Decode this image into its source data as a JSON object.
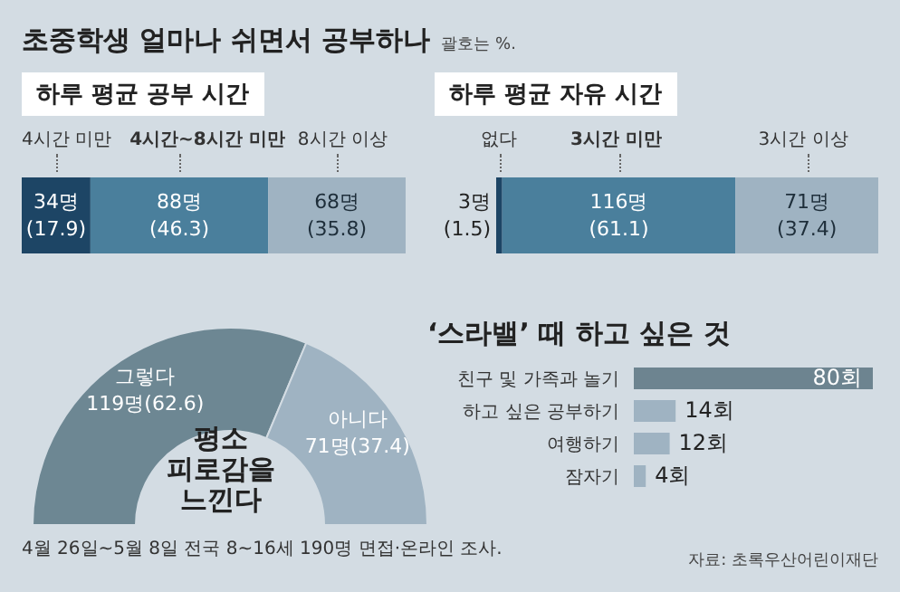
{
  "chart_data": [
    {
      "type": "bar",
      "orientation": "horizontal",
      "stacked": true,
      "title": "초중학생 얼마나 쉬면서 공부하나",
      "annotations": [
        "괄호는 %."
      ],
      "subtitle": "하루 평균 공부 시간",
      "categories": [
        null
      ],
      "series": [
        {
          "name": "4시간 미만",
          "color": "#1d4565",
          "values": [
            34
          ],
          "value_labels": [
            "34명 (17.9)"
          ]
        },
        {
          "name": "4시간~8시간 미만",
          "color": "#4a7f9c",
          "values": [
            88
          ],
          "value_labels": [
            "88명 (46.3)"
          ]
        },
        {
          "name": "8시간 이상",
          "color": "#9fb3c2",
          "values": [
            68
          ],
          "value_labels": [
            "68명 (35.8)"
          ]
        }
      ]
    },
    {
      "type": "bar",
      "orientation": "horizontal",
      "stacked": true,
      "subtitle": "하루 평균 자유 시간",
      "categories": [
        null
      ],
      "series": [
        {
          "name": "없다",
          "color": "#1d4565",
          "values": [
            3
          ],
          "value_labels": [
            "3명 (1.5)"
          ]
        },
        {
          "name": "3시간 미만",
          "color": "#4a7f9c",
          "values": [
            116
          ],
          "value_labels": [
            "116명 (61.1)"
          ]
        },
        {
          "name": "3시간 이상",
          "color": "#9fb3c2",
          "values": [
            71
          ],
          "value_labels": [
            "71명 (37.4)"
          ]
        }
      ]
    },
    {
      "type": "donut",
      "title": "평소 피로감을 느낀다",
      "categories": [
        "그렇다",
        "아니다"
      ],
      "values": [
        119,
        71
      ],
      "colors": [
        "#6d8793",
        "#9fb3c2"
      ],
      "value_labels": [
        "119명(62.6)",
        "71명(37.4)"
      ],
      "annotations": [
        "4월 26일~5월 8일 전국 8~16세 190명 면접·온라인 조사."
      ]
    },
    {
      "type": "bar",
      "orientation": "horizontal",
      "title": "‘스라밸’ 때 하고 싶은 것",
      "categories": [
        "친구 및 가족과 놀기",
        "하고 싶은 공부하기",
        "여행하기",
        "잠자기"
      ],
      "values": [
        80,
        14,
        12,
        4
      ],
      "colors": [
        "#6d8490",
        "#9fb3c2",
        "#9fb3c2",
        "#9fb3c2"
      ],
      "value_labels": [
        "80회",
        "14회",
        "12회",
        "4회"
      ],
      "annotations": [
        "자료: 초록우산어린이재단"
      ]
    }
  ]
}
